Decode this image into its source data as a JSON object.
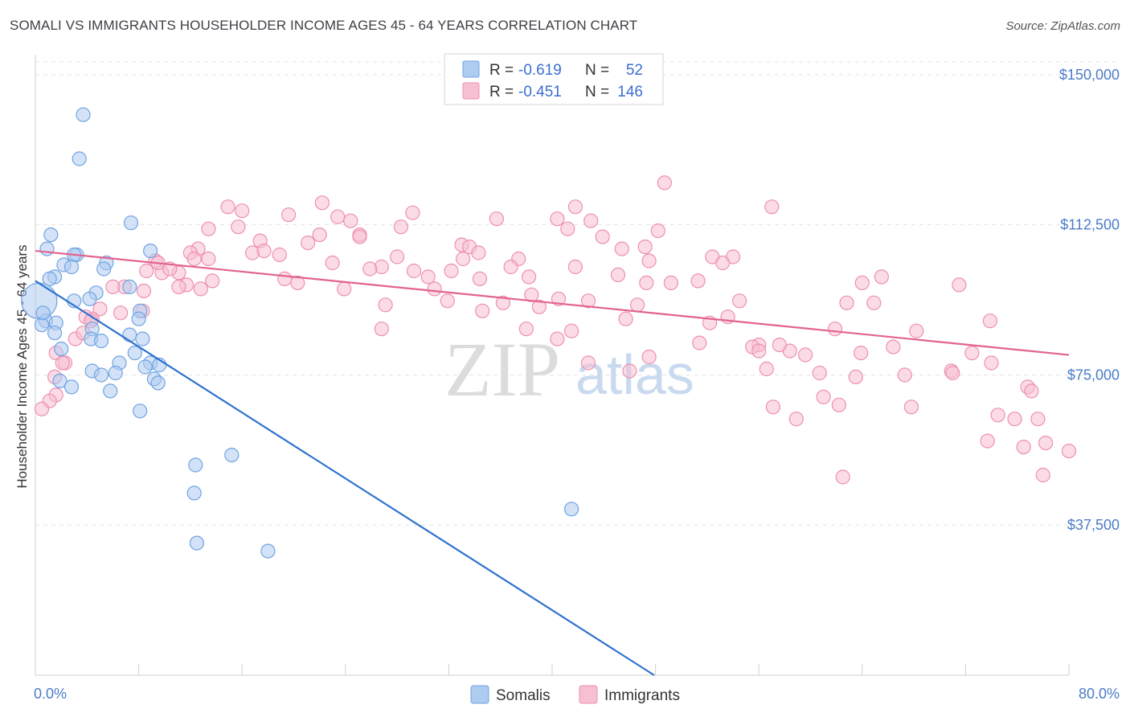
{
  "header": {
    "title": "SOMALI VS IMMIGRANTS HOUSEHOLDER INCOME AGES 45 - 64 YEARS CORRELATION CHART",
    "source": "Source: ZipAtlas.com"
  },
  "watermark": {
    "zip": "ZIP",
    "atlas": "atlas"
  },
  "legend": {
    "rows": [
      {
        "r_label": "R =",
        "r_value": "-0.619",
        "n_label": "N =",
        "n_value": "52",
        "swatch": "#aecbf0"
      },
      {
        "r_label": "R =",
        "r_value": "-0.451",
        "n_label": "N =",
        "n_value": "146",
        "swatch": "#f6b8cc"
      }
    ]
  },
  "chart_data": {
    "type": "scatter",
    "xlabel": "",
    "ylabel": "Householder Income Ages 45 - 64 years",
    "xlim": [
      0,
      80
    ],
    "ylim": [
      0,
      155000
    ],
    "x_tick_labels": [
      "0.0%",
      "80.0%"
    ],
    "y_ticks": [
      {
        "value": 37500,
        "label": "$37,500"
      },
      {
        "value": 75000,
        "label": "$75,000"
      },
      {
        "value": 112500,
        "label": "$112,500"
      },
      {
        "value": 150000,
        "label": "$150,000"
      }
    ],
    "grid": "horizontal dashed",
    "legend_position": "top-center",
    "series": [
      {
        "name": "Somalis",
        "color": "#6fa4e2",
        "fill": "#aecbf0",
        "trend": {
          "x": [
            0,
            47.9
          ],
          "y": [
            98500,
            0
          ],
          "color": "#2f72d0"
        },
        "points": [
          [
            3.7,
            140000
          ],
          [
            3.4,
            129000
          ],
          [
            7.4,
            113000
          ],
          [
            1.2,
            110000
          ],
          [
            0.9,
            106500
          ],
          [
            3.2,
            105000
          ],
          [
            3.0,
            105000
          ],
          [
            2.2,
            102500
          ],
          [
            2.8,
            102000
          ],
          [
            5.5,
            103000
          ],
          [
            5.3,
            101500
          ],
          [
            8.9,
            106000
          ],
          [
            1.5,
            99500
          ],
          [
            1.1,
            99000
          ],
          [
            7.3,
            97000
          ],
          [
            4.7,
            95500
          ],
          [
            4.2,
            94000
          ],
          [
            3.0,
            93500
          ],
          [
            0.3,
            93500
          ],
          [
            8.1,
            91000
          ],
          [
            0.8,
            88500
          ],
          [
            0.5,
            87500
          ],
          [
            1.6,
            88000
          ],
          [
            8.0,
            89000
          ],
          [
            4.4,
            86500
          ],
          [
            1.5,
            85500
          ],
          [
            7.3,
            85000
          ],
          [
            4.3,
            84000
          ],
          [
            5.1,
            83500
          ],
          [
            8.3,
            84000
          ],
          [
            2.0,
            81500
          ],
          [
            7.7,
            80500
          ],
          [
            6.5,
            78000
          ],
          [
            8.9,
            78000
          ],
          [
            8.5,
            77000
          ],
          [
            4.4,
            76000
          ],
          [
            6.2,
            75500
          ],
          [
            5.1,
            75000
          ],
          [
            9.6,
            77500
          ],
          [
            9.2,
            74000
          ],
          [
            9.5,
            73000
          ],
          [
            1.9,
            73500
          ],
          [
            2.8,
            72000
          ],
          [
            5.8,
            71000
          ],
          [
            8.1,
            66000
          ],
          [
            12.4,
            52500
          ],
          [
            15.2,
            55000
          ],
          [
            12.3,
            45500
          ],
          [
            41.5,
            41500
          ],
          [
            12.5,
            33000
          ],
          [
            18.0,
            31000
          ],
          [
            0.6,
            90500
          ]
        ],
        "sizes": [
          1,
          1,
          1,
          1,
          1,
          1,
          1,
          1,
          1,
          1,
          1,
          1,
          1,
          1,
          1,
          1,
          1,
          1,
          2.6,
          1,
          1,
          1,
          1,
          1,
          1,
          1,
          1,
          1,
          1,
          1,
          1,
          1,
          1,
          1,
          1,
          1,
          1,
          1,
          1,
          1,
          1,
          1,
          1,
          1,
          1,
          1,
          1,
          1,
          1,
          1,
          1,
          1
        ]
      },
      {
        "name": "Immigrants",
        "color": "#ee8fb0",
        "fill": "#f7bfd2",
        "trend": {
          "x": [
            0,
            80
          ],
          "y": [
            106000,
            80000
          ],
          "color": "#e2638f"
        },
        "points": [
          [
            48.7,
            123000
          ],
          [
            57.0,
            117000
          ],
          [
            14.9,
            117000
          ],
          [
            22.2,
            118000
          ],
          [
            16.0,
            116000
          ],
          [
            29.2,
            115500
          ],
          [
            19.6,
            115000
          ],
          [
            41.8,
            117000
          ],
          [
            23.4,
            114500
          ],
          [
            40.4,
            114000
          ],
          [
            35.7,
            114000
          ],
          [
            43.0,
            113500
          ],
          [
            24.4,
            113500
          ],
          [
            28.3,
            112000
          ],
          [
            41.2,
            111500
          ],
          [
            48.2,
            111000
          ],
          [
            15.7,
            112000
          ],
          [
            13.4,
            111500
          ],
          [
            25.1,
            110000
          ],
          [
            22.0,
            110000
          ],
          [
            25.1,
            109500
          ],
          [
            43.9,
            109500
          ],
          [
            17.4,
            108500
          ],
          [
            33.0,
            107500
          ],
          [
            21.1,
            108000
          ],
          [
            33.6,
            107000
          ],
          [
            47.2,
            107000
          ],
          [
            45.4,
            106500
          ],
          [
            12.6,
            106500
          ],
          [
            12.0,
            105500
          ],
          [
            16.8,
            105500
          ],
          [
            17.7,
            106000
          ],
          [
            18.9,
            105000
          ],
          [
            34.3,
            105500
          ],
          [
            37.4,
            104000
          ],
          [
            33.1,
            104000
          ],
          [
            28.0,
            104500
          ],
          [
            52.4,
            104500
          ],
          [
            54.0,
            104500
          ],
          [
            13.4,
            104000
          ],
          [
            53.2,
            103000
          ],
          [
            47.5,
            103500
          ],
          [
            9.3,
            103500
          ],
          [
            23.0,
            103000
          ],
          [
            26.8,
            102000
          ],
          [
            36.8,
            102000
          ],
          [
            41.8,
            102000
          ],
          [
            25.9,
            101500
          ],
          [
            29.3,
            101000
          ],
          [
            32.2,
            101000
          ],
          [
            8.6,
            101000
          ],
          [
            11.1,
            100500
          ],
          [
            9.8,
            100500
          ],
          [
            45.1,
            100000
          ],
          [
            30.4,
            99500
          ],
          [
            19.3,
            99000
          ],
          [
            34.4,
            99000
          ],
          [
            38.2,
            99500
          ],
          [
            13.7,
            98500
          ],
          [
            51.3,
            98500
          ],
          [
            47.3,
            98000
          ],
          [
            49.2,
            98000
          ],
          [
            20.3,
            98000
          ],
          [
            64.0,
            98000
          ],
          [
            71.5,
            97500
          ],
          [
            6.9,
            97000
          ],
          [
            11.7,
            97500
          ],
          [
            6.0,
            97000
          ],
          [
            12.8,
            96500
          ],
          [
            8.4,
            96000
          ],
          [
            23.9,
            96500
          ],
          [
            30.9,
            96500
          ],
          [
            38.4,
            95000
          ],
          [
            65.5,
            99500
          ],
          [
            40.5,
            94000
          ],
          [
            42.8,
            93500
          ],
          [
            54.5,
            93500
          ],
          [
            31.9,
            93500
          ],
          [
            36.2,
            93000
          ],
          [
            46.6,
            92500
          ],
          [
            62.8,
            93000
          ],
          [
            64.9,
            93000
          ],
          [
            27.1,
            92500
          ],
          [
            39.0,
            92000
          ],
          [
            8.3,
            91000
          ],
          [
            6.6,
            90500
          ],
          [
            34.6,
            91000
          ],
          [
            5.0,
            91500
          ],
          [
            4.4,
            89000
          ],
          [
            3.9,
            89500
          ],
          [
            45.7,
            89000
          ],
          [
            52.2,
            88000
          ],
          [
            73.9,
            88500
          ],
          [
            53.6,
            89500
          ],
          [
            26.8,
            86500
          ],
          [
            38.0,
            86500
          ],
          [
            41.5,
            86000
          ],
          [
            40.4,
            84000
          ],
          [
            56.0,
            82500
          ],
          [
            51.4,
            83000
          ],
          [
            61.9,
            86500
          ],
          [
            68.2,
            86000
          ],
          [
            66.4,
            82000
          ],
          [
            72.5,
            80500
          ],
          [
            74.0,
            78000
          ],
          [
            55.5,
            82000
          ],
          [
            58.4,
            81000
          ],
          [
            59.6,
            80000
          ],
          [
            60.7,
            75500
          ],
          [
            63.9,
            80500
          ],
          [
            47.5,
            79500
          ],
          [
            57.6,
            82500
          ],
          [
            70.9,
            76000
          ],
          [
            42.8,
            78000
          ],
          [
            46.0,
            76000
          ],
          [
            63.5,
            74500
          ],
          [
            67.3,
            75000
          ],
          [
            56.6,
            76500
          ],
          [
            56.0,
            81000
          ],
          [
            76.8,
            72000
          ],
          [
            77.1,
            71000
          ],
          [
            74.5,
            65000
          ],
          [
            71.0,
            75500
          ],
          [
            61.0,
            69500
          ],
          [
            62.2,
            67500
          ],
          [
            67.8,
            67000
          ],
          [
            57.1,
            67000
          ],
          [
            75.8,
            64000
          ],
          [
            77.6,
            64000
          ],
          [
            78.2,
            58000
          ],
          [
            58.9,
            64000
          ],
          [
            80.0,
            56000
          ],
          [
            76.5,
            57000
          ],
          [
            73.7,
            58500
          ],
          [
            78.0,
            50000
          ],
          [
            62.5,
            49500
          ],
          [
            2.3,
            78000
          ],
          [
            1.6,
            80500
          ],
          [
            3.1,
            84000
          ],
          [
            2.1,
            78000
          ],
          [
            1.5,
            74500
          ],
          [
            1.6,
            70000
          ],
          [
            1.1,
            68500
          ],
          [
            0.5,
            66500
          ],
          [
            10.4,
            101500
          ],
          [
            11.1,
            97000
          ],
          [
            9.5,
            103000
          ],
          [
            12.3,
            104000
          ],
          [
            3.7,
            85500
          ],
          [
            4.3,
            88500
          ]
        ]
      }
    ]
  },
  "bottom_legend": {
    "items": [
      {
        "label": "Somalis",
        "swatch": "#aecbf0",
        "border": "#6fa4e2"
      },
      {
        "label": "Immigrants",
        "swatch": "#f7bfd2",
        "border": "#ee8fb0"
      }
    ]
  }
}
